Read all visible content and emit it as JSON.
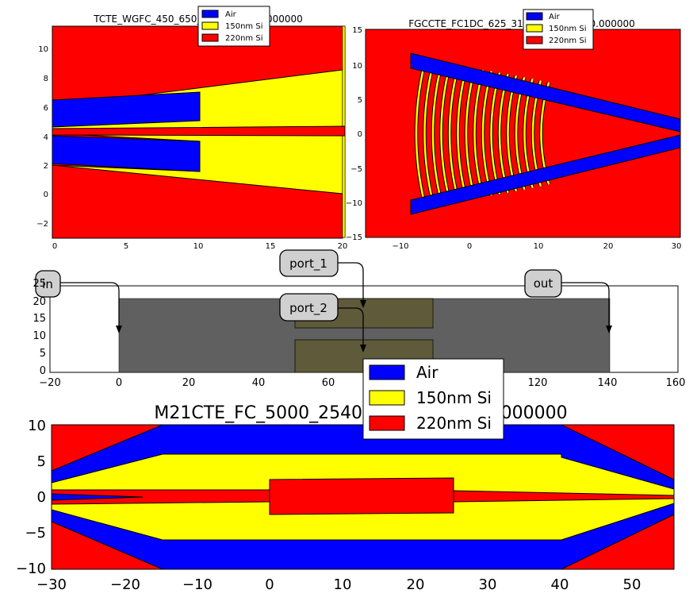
{
  "colors": {
    "air": "#0000ff",
    "si150": "#ffff00",
    "si220": "#ff0000",
    "component": "#606060",
    "port_region": "#5e5a3a",
    "label_fill": "#d0d0d0"
  },
  "legend_entries": [
    "Air",
    "150nm Si",
    "220nm Si"
  ],
  "top_left": {
    "title": "TCTE_WGFC_450_650_2D_R10_GR0.000000",
    "x_ticks": [
      "0",
      "5",
      "10",
      "15",
      "20"
    ],
    "y_ticks": [
      "10",
      "8",
      "6",
      "4",
      "2",
      "0",
      "−2"
    ]
  },
  "top_right": {
    "title": "FGCCTE_FC1DC_625_313_2D_R10_GR0.000000",
    "x_ticks": [
      "−10",
      "0",
      "10",
      "20",
      "30"
    ],
    "y_ticks": [
      "15",
      "10",
      "5",
      "0",
      "−5",
      "−10",
      "−15"
    ]
  },
  "middle": {
    "x_ticks": [
      "−20",
      "0",
      "20",
      "40",
      "60",
      "80",
      "100",
      "120",
      "140",
      "160"
    ],
    "y_ticks": [
      "25",
      "20",
      "15",
      "10",
      "5",
      "0"
    ],
    "labels": {
      "in": "in",
      "out": "out",
      "port_1": "port_1",
      "port_2": "port_2"
    }
  },
  "bottom": {
    "title": "M21CTE_FC_5000_25400_2D_R10_GR0.000000",
    "x_ticks": [
      "−30",
      "−20",
      "−10",
      "0",
      "10",
      "20",
      "30",
      "40",
      "50"
    ],
    "y_ticks": [
      "10",
      "5",
      "0",
      "−5",
      "−10"
    ]
  }
}
